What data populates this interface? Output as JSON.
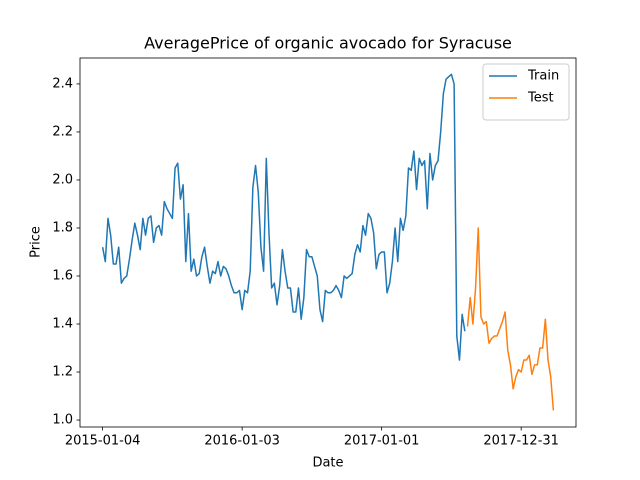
{
  "chart_data": {
    "type": "line",
    "title": "AveragePrice of organic avocado for Syracuse",
    "x_label": "Date",
    "y_label": "Price",
    "xlim": [
      "2014-11-06",
      "2018-05-23"
    ],
    "xticks": [
      "2015-01-04",
      "2016-01-03",
      "2017-01-01",
      "2017-12-31"
    ],
    "ylim": [
      0.971,
      2.508
    ],
    "yticks": [
      {
        "value": 1,
        "label": "1.0"
      },
      {
        "value": 1.2,
        "label": "1.2"
      },
      {
        "value": 1.4,
        "label": "1.4"
      },
      {
        "value": 1.6,
        "label": "1.6"
      },
      {
        "value": 1.8,
        "label": "1.8"
      },
      {
        "value": 2,
        "label": "2.0"
      },
      {
        "value": 2.2,
        "label": "2.2"
      },
      {
        "value": 2.4,
        "label": "2.4"
      }
    ],
    "legend": "upper right",
    "grid": false,
    "series": [
      {
        "name": "Train",
        "color": "#1f77b4",
        "x": [
          "2015-01-04",
          "2015-01-11",
          "2015-01-18",
          "2015-01-25",
          "2015-02-01",
          "2015-02-08",
          "2015-02-15",
          "2015-02-22",
          "2015-03-01",
          "2015-03-08",
          "2015-03-15",
          "2015-03-22",
          "2015-03-29",
          "2015-04-05",
          "2015-04-12",
          "2015-04-19",
          "2015-04-26",
          "2015-05-03",
          "2015-05-10",
          "2015-05-17",
          "2015-05-24",
          "2015-05-31",
          "2015-06-07",
          "2015-06-14",
          "2015-06-21",
          "2015-06-28",
          "2015-07-05",
          "2015-07-12",
          "2015-07-19",
          "2015-07-26",
          "2015-08-02",
          "2015-08-09",
          "2015-08-16",
          "2015-08-23",
          "2015-08-30",
          "2015-09-06",
          "2015-09-13",
          "2015-09-20",
          "2015-09-27",
          "2015-10-04",
          "2015-10-11",
          "2015-10-18",
          "2015-10-25",
          "2015-11-01",
          "2015-11-08",
          "2015-11-15",
          "2015-11-22",
          "2015-11-29",
          "2015-12-06",
          "2015-12-13",
          "2015-12-20",
          "2015-12-27",
          "2016-01-03",
          "2016-01-10",
          "2016-01-17",
          "2016-01-24",
          "2016-01-31",
          "2016-02-07",
          "2016-02-14",
          "2016-02-21",
          "2016-02-28",
          "2016-03-06",
          "2016-03-13",
          "2016-03-20",
          "2016-03-27",
          "2016-04-03",
          "2016-04-10",
          "2016-04-17",
          "2016-04-24",
          "2016-05-01",
          "2016-05-08",
          "2016-05-15",
          "2016-05-22",
          "2016-05-29",
          "2016-06-05",
          "2016-06-12",
          "2016-06-19",
          "2016-06-26",
          "2016-07-03",
          "2016-07-10",
          "2016-07-17",
          "2016-07-24",
          "2016-07-31",
          "2016-08-07",
          "2016-08-14",
          "2016-08-21",
          "2016-08-28",
          "2016-09-04",
          "2016-09-11",
          "2016-09-18",
          "2016-09-25",
          "2016-10-02",
          "2016-10-09",
          "2016-10-16",
          "2016-10-23",
          "2016-10-30",
          "2016-11-06",
          "2016-11-13",
          "2016-11-20",
          "2016-11-27",
          "2016-12-04",
          "2016-12-11",
          "2016-12-18",
          "2016-12-25",
          "2017-01-01",
          "2017-01-08",
          "2017-01-15",
          "2017-01-22",
          "2017-01-29",
          "2017-02-05",
          "2017-02-12",
          "2017-02-19",
          "2017-02-26",
          "2017-03-05",
          "2017-03-12",
          "2017-03-19",
          "2017-03-26",
          "2017-04-02",
          "2017-04-09",
          "2017-04-16",
          "2017-04-23",
          "2017-04-30",
          "2017-05-07",
          "2017-05-14",
          "2017-05-21",
          "2017-05-28",
          "2017-06-04",
          "2017-06-11",
          "2017-06-18",
          "2017-06-25",
          "2017-07-02",
          "2017-07-09",
          "2017-07-16",
          "2017-07-23",
          "2017-07-30",
          "2017-08-06"
        ],
        "values": [
          1.72,
          1.66,
          1.84,
          1.77,
          1.65,
          1.65,
          1.72,
          1.57,
          1.59,
          1.6,
          1.67,
          1.75,
          1.82,
          1.77,
          1.71,
          1.84,
          1.77,
          1.84,
          1.85,
          1.74,
          1.8,
          1.81,
          1.77,
          1.91,
          1.88,
          1.86,
          1.84,
          2.05,
          2.07,
          1.92,
          1.98,
          1.66,
          1.86,
          1.62,
          1.67,
          1.6,
          1.61,
          1.68,
          1.72,
          1.64,
          1.57,
          1.62,
          1.61,
          1.66,
          1.6,
          1.64,
          1.63,
          1.6,
          1.56,
          1.53,
          1.53,
          1.54,
          1.46,
          1.54,
          1.53,
          1.62,
          1.97,
          2.06,
          1.95,
          1.72,
          1.62,
          2.09,
          1.78,
          1.55,
          1.57,
          1.48,
          1.56,
          1.71,
          1.62,
          1.55,
          1.55,
          1.45,
          1.45,
          1.55,
          1.42,
          1.51,
          1.71,
          1.68,
          1.68,
          1.64,
          1.6,
          1.46,
          1.41,
          1.54,
          1.53,
          1.53,
          1.54,
          1.56,
          1.54,
          1.51,
          1.6,
          1.59,
          1.6,
          1.61,
          1.69,
          1.73,
          1.7,
          1.81,
          1.77,
          1.86,
          1.84,
          1.78,
          1.63,
          1.69,
          1.7,
          1.7,
          1.53,
          1.57,
          1.66,
          1.8,
          1.66,
          1.84,
          1.79,
          1.85,
          2.05,
          2.04,
          2.12,
          1.96,
          2.09,
          2.06,
          2.08,
          1.88,
          2.11,
          2,
          2.06,
          2.08,
          2.2,
          2.36,
          2.42,
          2.43,
          2.44,
          2.4,
          1.35,
          1.25,
          1.44,
          1.37
        ]
      },
      {
        "name": "Test",
        "color": "#ff7f0e",
        "x": [
          "2017-08-13",
          "2017-08-20",
          "2017-08-27",
          "2017-09-03",
          "2017-09-10",
          "2017-09-17",
          "2017-09-24",
          "2017-10-01",
          "2017-10-08",
          "2017-10-15",
          "2017-10-22",
          "2017-10-29",
          "2017-11-05",
          "2017-11-12",
          "2017-11-19",
          "2017-11-26",
          "2017-12-03",
          "2017-12-10",
          "2017-12-17",
          "2017-12-24",
          "2017-12-31",
          "2018-01-07",
          "2018-01-14",
          "2018-01-21",
          "2018-01-28",
          "2018-02-04",
          "2018-02-11",
          "2018-02-18",
          "2018-02-25",
          "2018-03-04",
          "2018-03-11",
          "2018-03-18",
          "2018-03-25"
        ],
        "values": [
          1.39,
          1.51,
          1.4,
          1.55,
          1.8,
          1.43,
          1.4,
          1.41,
          1.32,
          1.34,
          1.35,
          1.35,
          1.38,
          1.41,
          1.45,
          1.29,
          1.23,
          1.13,
          1.18,
          1.21,
          1.2,
          1.25,
          1.25,
          1.27,
          1.19,
          1.23,
          1.23,
          1.3,
          1.3,
          1.42,
          1.25,
          1.18,
          1.04
        ]
      }
    ]
  }
}
